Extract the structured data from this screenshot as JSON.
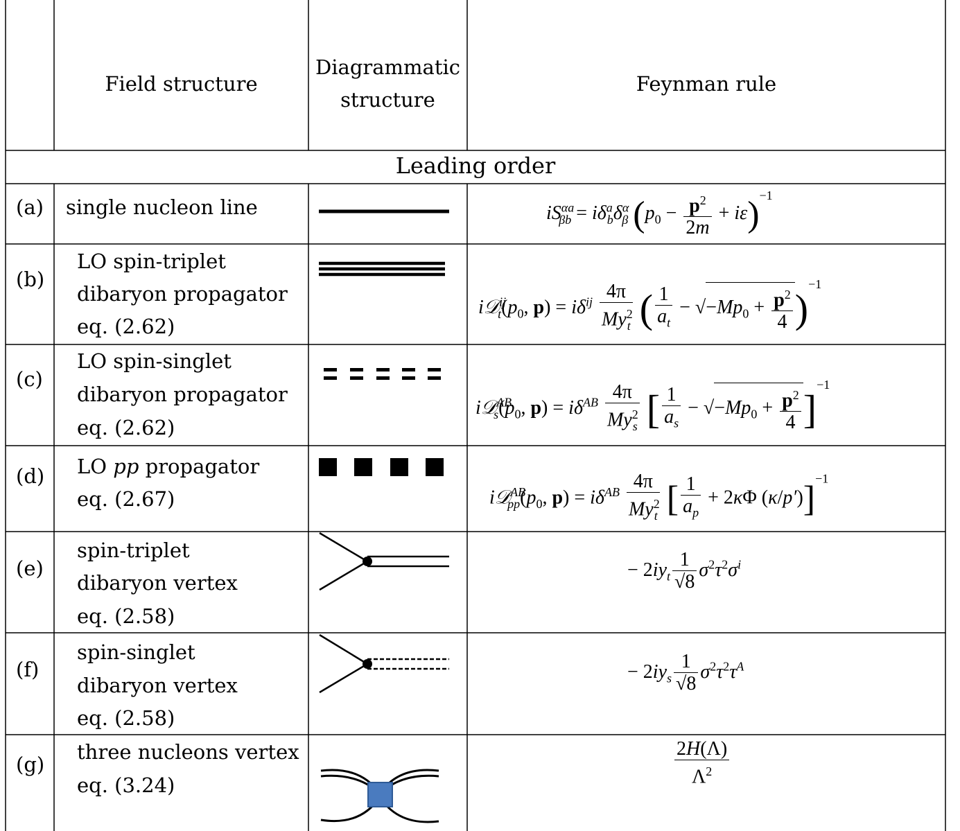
{
  "header": {
    "field_structure": "Field structure",
    "diagrammatic_structure_line1": "Diagrammatic",
    "diagrammatic_structure_line2": "structure",
    "feynman_rule": "Feynman rule"
  },
  "section": {
    "title": "Leading order"
  },
  "rows": [
    {
      "label": "(a)",
      "desc": [
        "single nucleon line"
      ]
    },
    {
      "label": "(b)",
      "desc": [
        "LO spin-triplet",
        "dibaryon propagator",
        "eq. (2.62)"
      ]
    },
    {
      "label": "(c)",
      "desc": [
        "LO spin-singlet",
        "dibaryon propagator",
        "eq. (2.62)"
      ]
    },
    {
      "label": "(d)",
      "desc_pre": "LO ",
      "desc_it": "pp",
      "desc_post": " propagator",
      "desc2": "eq. (2.67)"
    },
    {
      "label": "(e)",
      "desc": [
        "spin-triplet",
        "dibaryon vertex",
        "eq. (2.58)"
      ]
    },
    {
      "label": "(f)",
      "desc": [
        "spin-singlet",
        "dibaryon vertex",
        "eq. (2.58)"
      ]
    },
    {
      "label": "(g)",
      "desc": [
        "three nucleons vertex",
        "eq. (3.24)"
      ]
    }
  ],
  "diagram_colors": {
    "line": "#000000",
    "vertex_square": "#4a7bbf"
  }
}
